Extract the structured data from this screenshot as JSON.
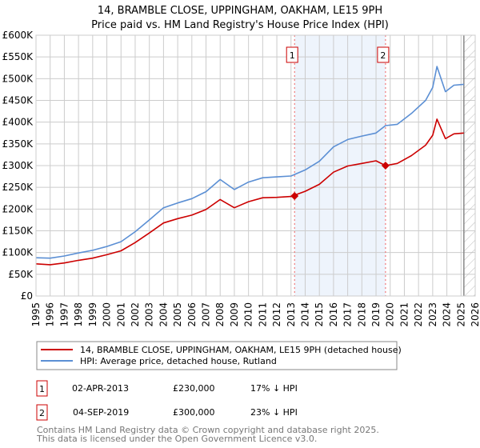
{
  "chart_data": {
    "type": "line",
    "title": "14, BRAMBLE CLOSE, UPPINGHAM, OAKHAM, LE15 9PH",
    "subtitle": "Price paid vs. HM Land Registry's House Price Index (HPI)",
    "xlabel": "",
    "ylabel": "",
    "xlim": [
      1995,
      2026
    ],
    "ylim": [
      0,
      600000
    ],
    "grid": true,
    "y_ticks": [
      0,
      50000,
      100000,
      150000,
      200000,
      250000,
      300000,
      350000,
      400000,
      450000,
      500000,
      550000,
      600000
    ],
    "y_tick_labels": [
      "£0",
      "£50K",
      "£100K",
      "£150K",
      "£200K",
      "£250K",
      "£300K",
      "£350K",
      "£400K",
      "£450K",
      "£500K",
      "£550K",
      "£600K"
    ],
    "x_tick_labels": [
      "1995",
      "1996",
      "1997",
      "1998",
      "1999",
      "2000",
      "2001",
      "2002",
      "2003",
      "2004",
      "2005",
      "2006",
      "2007",
      "2008",
      "2009",
      "2010",
      "2011",
      "2012",
      "2013",
      "2014",
      "2015",
      "2016",
      "2017",
      "2018",
      "2019",
      "2020",
      "2021",
      "2022",
      "2023",
      "2024",
      "2025",
      "2026"
    ],
    "x": [
      1995,
      1996,
      1997,
      1998,
      1999,
      2000,
      2001,
      2002,
      2003,
      2004,
      2005,
      2006,
      2007,
      2008,
      2009,
      2010,
      2011,
      2012,
      2013,
      2014,
      2015,
      2016,
      2017,
      2018,
      2019,
      2019.67,
      2020.5,
      2021.5,
      2022.5,
      2023,
      2023.3,
      2023.9,
      2024.5,
      2025.2
    ],
    "series": [
      {
        "name": "14, BRAMBLE CLOSE, UPPINGHAM, OAKHAM, LE15 9PH (detached house)",
        "color": "#cc0000",
        "values": [
          74000,
          72000,
          76000,
          82000,
          87000,
          95000,
          104000,
          123000,
          145000,
          168000,
          178000,
          186000,
          199000,
          222000,
          203000,
          217000,
          226000,
          227000,
          229000,
          241000,
          257000,
          285000,
          299000,
          305000,
          311000,
          300000,
          305000,
          323000,
          347000,
          370000,
          407000,
          362000,
          373000,
          375000
        ]
      },
      {
        "name": "HPI: Average price, detached house, Rutland",
        "color": "#5b8fd4",
        "values": [
          88000,
          87000,
          92000,
          99000,
          105000,
          114000,
          125000,
          148000,
          175000,
          203000,
          214000,
          224000,
          240000,
          268000,
          245000,
          262000,
          272000,
          274000,
          276000,
          290000,
          310000,
          343000,
          360000,
          368000,
          375000,
          392000,
          395000,
          420000,
          450000,
          480000,
          528000,
          470000,
          485000,
          487000
        ]
      }
    ],
    "sales": [
      {
        "label": "1",
        "x": 2013.25,
        "value": 230000,
        "date": "02-APR-2013",
        "price": "£230,000",
        "hpi_diff": "17% ↓ HPI"
      },
      {
        "label": "2",
        "x": 2019.67,
        "value": 300000,
        "date": "04-SEP-2019",
        "price": "£300,000",
        "hpi_diff": "23% ↓ HPI"
      }
    ],
    "forecast_start": 2025.2,
    "legend_placement": "bottom"
  },
  "footer": {
    "line1": "Contains HM Land Registry data © Crown copyright and database right 2025.",
    "line2": "This data is licensed under the Open Government Licence v3.0."
  },
  "colors": {
    "price": "#cc0000",
    "hpi": "#5b8fd4",
    "shade": "#eef4fc",
    "grid": "#cccccc"
  }
}
